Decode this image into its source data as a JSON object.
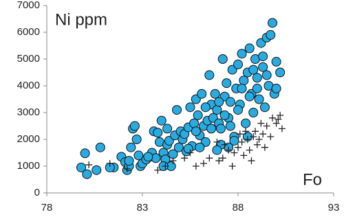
{
  "chart_data": {
    "type": "scatter",
    "y_label": "Ni ppm",
    "x_label": "Fo",
    "xlim": [
      78,
      93
    ],
    "xticks": [
      78,
      83,
      88,
      93
    ],
    "ylim": [
      0,
      7000
    ],
    "yticks": [
      0,
      1000,
      2000,
      3000,
      4000,
      5000,
      6000,
      7000
    ],
    "series": [
      {
        "marker": "circle",
        "color": "#29abe2",
        "x": [
          79.8,
          80,
          80.1,
          80.6,
          80.8,
          81.5,
          81.9,
          82.1,
          82.2,
          82.3,
          82.4,
          82.5,
          82.6,
          82.7,
          82.8,
          82.9,
          83,
          83.2,
          83.4,
          83.5,
          83.6,
          83.7,
          83.8,
          83.9,
          84,
          84.1,
          84.2,
          84.3,
          84.4,
          84.5,
          84.6,
          84.7,
          84.8,
          84.9,
          85,
          85.1,
          85.2,
          85.3,
          85.4,
          85.5,
          85.6,
          85.7,
          85.8,
          85.9,
          86,
          86.1,
          86.2,
          86.3,
          86.4,
          86.5,
          86.6,
          86.7,
          86.8,
          86.9,
          87,
          87.1,
          87.2,
          87.3,
          87.4,
          87.5,
          87.6,
          87.7,
          87.8,
          87.9,
          88,
          88.1,
          88.2,
          88.3,
          88.4,
          88.5,
          88.6,
          88.7,
          88.8,
          88.9,
          89,
          89.1,
          89.2,
          89.3,
          89.4,
          89.5,
          89.6,
          89.7,
          89.8,
          89.9,
          90,
          90.2,
          87.8,
          87.5,
          87.1,
          86.9,
          86,
          85.4,
          84.3,
          88.5,
          89,
          88,
          87.3,
          86.6,
          88.8,
          89.5,
          88.2,
          87,
          89.3,
          88.6,
          87.6,
          90,
          85.8,
          86.3,
          84.1,
          83.3,
          82.3,
          81.3
        ],
        "values": [
          950,
          1480,
          700,
          850,
          1700,
          950,
          1350,
          1150,
          850,
          1000,
          1700,
          2400,
          2500,
          2000,
          1400,
          1000,
          1100,
          1250,
          1350,
          1500,
          2300,
          1300,
          2250,
          1900,
          2700,
          1500,
          1250,
          1800,
          1950,
          1000,
          1450,
          2150,
          3100,
          1700,
          2300,
          2000,
          2200,
          1550,
          2450,
          3200,
          1750,
          2600,
          3500,
          2900,
          2150,
          3700,
          2500,
          1900,
          2700,
          4400,
          3300,
          2800,
          3700,
          3100,
          2600,
          2400,
          5000,
          3600,
          4100,
          2800,
          3400,
          4600,
          2100,
          3900,
          4800,
          3300,
          5200,
          4200,
          2600,
          4500,
          5400,
          3700,
          3000,
          5000,
          4300,
          3500,
          5600,
          4700,
          3200,
          5800,
          4000,
          5900,
          6350,
          3700,
          4900,
          4500,
          1950,
          1700,
          1800,
          1600,
          1700,
          1650,
          2400,
          2100,
          3900,
          3100,
          2900,
          2400,
          4600,
          4400,
          3900,
          3400,
          5100,
          3600,
          2500,
          3900,
          2300,
          3200,
          1000,
          1350,
          1200,
          950
        ]
      },
      {
        "marker": "plus",
        "color": "#222222",
        "x": [
          80.2,
          81.3,
          82.2,
          83.8,
          84.2,
          84.6,
          85.2,
          85.8,
          86.2,
          86.5,
          87,
          87.2,
          87.5,
          87.8,
          88,
          88.2,
          88.3,
          88.5,
          88.6,
          88.8,
          88.9,
          89,
          89.1,
          89.3,
          89.5,
          89.7,
          90,
          90.3,
          90.2,
          89.8,
          88.4,
          87.3,
          86.9,
          89.4,
          88.7,
          87.7,
          85.5,
          89.2,
          90.1,
          88.1
        ],
        "values": [
          1050,
          1100,
          900,
          850,
          1000,
          1200,
          1300,
          1000,
          1100,
          1300,
          1200,
          1300,
          1600,
          1500,
          1700,
          1900,
          1400,
          2000,
          1600,
          2100,
          2300,
          1800,
          2000,
          2200,
          2500,
          2100,
          2600,
          2400,
          2900,
          2800,
          2300,
          1800,
          1900,
          1700,
          1200,
          1000,
          1500,
          2600,
          2750,
          2200
        ]
      }
    ]
  }
}
